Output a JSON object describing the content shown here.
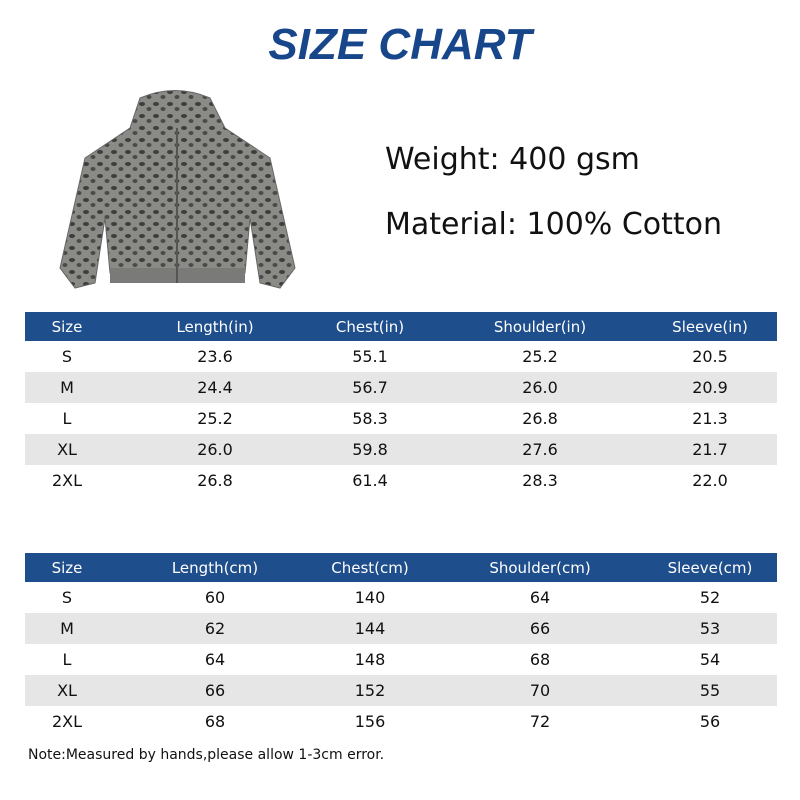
{
  "header": {
    "title": "SIZE CHART",
    "weight": "Weight: 400 gsm",
    "material": "Material: 100% Cotton"
  },
  "tables": [
    {
      "columns": [
        "Size",
        "Length(in)",
        "Chest(in)",
        "Shoulder(in)",
        "Sleeve(in)"
      ],
      "rows": [
        [
          "S",
          "23.6",
          "55.1",
          "25.2",
          "20.5"
        ],
        [
          "M",
          "24.4",
          "56.7",
          "26.0",
          "20.9"
        ],
        [
          "L",
          "25.2",
          "58.3",
          "26.8",
          "21.3"
        ],
        [
          "XL",
          "26.0",
          "59.8",
          "27.6",
          "21.7"
        ],
        [
          "2XL",
          "26.8",
          "61.4",
          "28.3",
          "22.0"
        ]
      ]
    },
    {
      "columns": [
        "Size",
        "Length(cm)",
        "Chest(cm)",
        "Shoulder(cm)",
        "Sleeve(cm)"
      ],
      "rows": [
        [
          "S",
          "60",
          "140",
          "64",
          "52"
        ],
        [
          "M",
          "62",
          "144",
          "66",
          "53"
        ],
        [
          "L",
          "64",
          "148",
          "68",
          "54"
        ],
        [
          "XL",
          "66",
          "152",
          "70",
          "55"
        ],
        [
          "2XL",
          "68",
          "156",
          "72",
          "56"
        ]
      ]
    }
  ],
  "note": "Note:Measured by hands,please allow 1-3cm error."
}
